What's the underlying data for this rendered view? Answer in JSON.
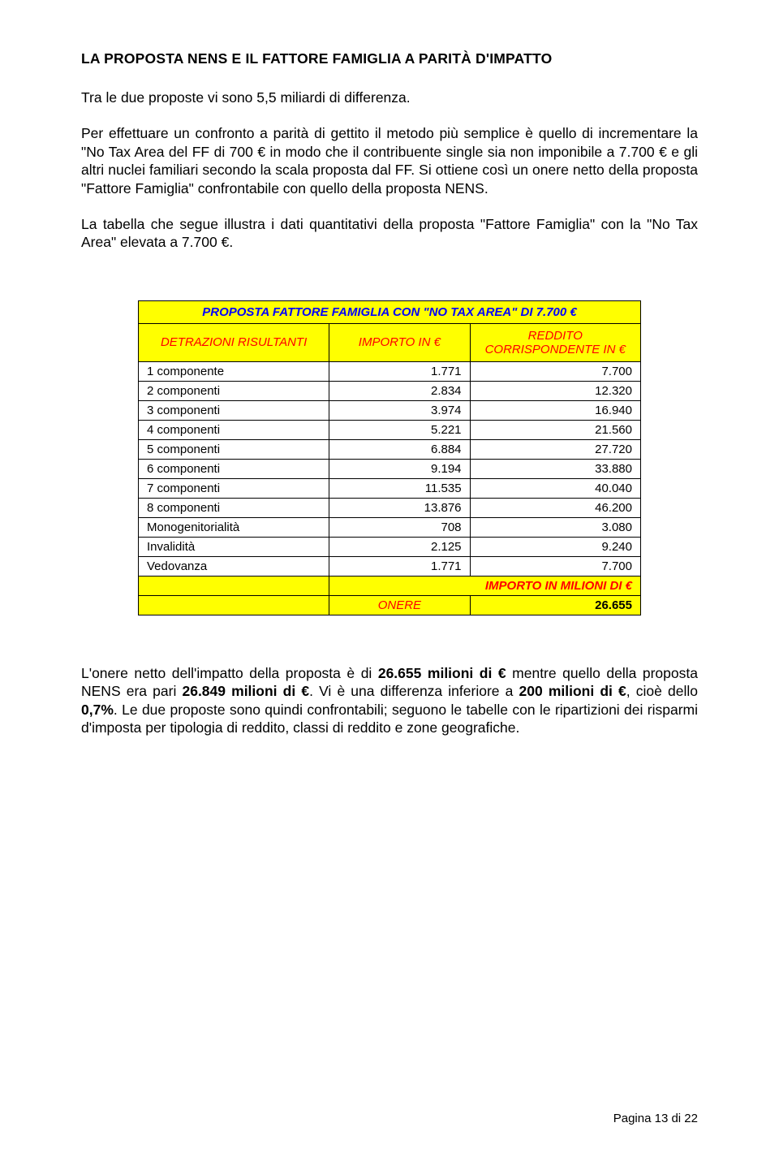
{
  "heading": "LA PROPOSTA NENS E IL FATTORE FAMIGLIA A PARITÀ D'IMPATTO",
  "para1": "Tra le due proposte vi sono 5,5 miliardi di differenza.",
  "para2": "Per effettuare un confronto a parità di gettito il metodo più semplice è quello di incrementare la \"No Tax Area del FF di 700 € in modo che il contribuente single sia non imponibile a 7.700 € e gli altri nuclei familiari secondo la scala proposta dal FF. Si ottiene così un onere netto della proposta \"Fattore Famiglia\" confrontabile con quello della proposta NENS.",
  "para3": "La tabella che segue illustra i dati quantitativi della proposta \"Fattore Famiglia\" con la \"No Tax Area\" elevata a 7.700 €.",
  "para4": "L'onere netto dell'impatto della proposta è di 26.655 milioni di € mentre quello della proposta NENS era pari 26.849 milioni di €. Vi è una differenza inferiore a 200 milioni di €, cioè dello 0,7%. Le due proposte sono quindi confrontabili; seguono le tabelle con le ripartizioni dei risparmi d'imposta per tipologia di reddito, classi di reddito e zone geografiche.",
  "table": {
    "title": "PROPOSTA FATTORE FAMIGLIA CON \"NO TAX AREA\" DI 7.700 €",
    "col1": "DETRAZIONI RISULTANTI",
    "col2": "IMPORTO IN €",
    "col3": "REDDITO CORRISPONDENTE IN €",
    "rows": [
      {
        "label": "1 componente",
        "importo": "1.771",
        "reddito": "7.700"
      },
      {
        "label": "2 componenti",
        "importo": "2.834",
        "reddito": "12.320"
      },
      {
        "label": "3 componenti",
        "importo": "3.974",
        "reddito": "16.940"
      },
      {
        "label": "4 componenti",
        "importo": "5.221",
        "reddito": "21.560"
      },
      {
        "label": "5 componenti",
        "importo": "6.884",
        "reddito": "27.720"
      },
      {
        "label": "6 componenti",
        "importo": "9.194",
        "reddito": "33.880"
      },
      {
        "label": "7 componenti",
        "importo": "11.535",
        "reddito": "40.040"
      },
      {
        "label": "8 componenti",
        "importo": "13.876",
        "reddito": "46.200"
      },
      {
        "label": "Monogenitorialità",
        "importo": "708",
        "reddito": "3.080"
      },
      {
        "label": "Invalidità",
        "importo": "2.125",
        "reddito": "9.240"
      },
      {
        "label": "Vedovanza",
        "importo": "1.771",
        "reddito": "7.700"
      }
    ],
    "footer_title": "IMPORTO IN MILIONI DI €",
    "footer_label": "ONERE",
    "footer_value": "26.655"
  },
  "page_footer": "Pagina 13 di 22",
  "colors": {
    "highlight_bg": "#ffff00",
    "header_text": "#0000ff",
    "subheader_text": "#ff0000",
    "body_text": "#000000",
    "page_bg": "#ffffff",
    "border": "#000000"
  }
}
